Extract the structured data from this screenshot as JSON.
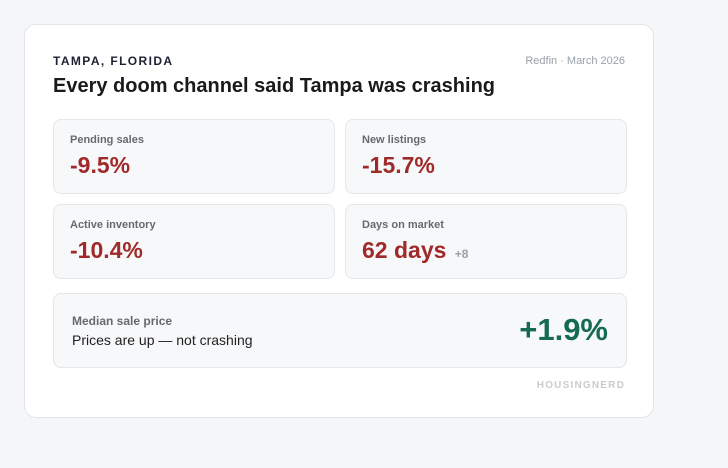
{
  "header": {
    "eyebrow": "TAMPA, FLORIDA",
    "source": "Redfin · March 2026",
    "title": "Every doom channel said Tampa was crashing"
  },
  "metrics": [
    {
      "label": "Pending sales",
      "value": "-9.5%",
      "delta": ""
    },
    {
      "label": "New listings",
      "value": "-15.7%",
      "delta": ""
    },
    {
      "label": "Active inventory",
      "value": "-10.4%",
      "delta": ""
    },
    {
      "label": "Days on market",
      "value": "62 days",
      "delta": "+8"
    }
  ],
  "highlight": {
    "label": "Median sale price",
    "subtitle": "Prices are up — not crashing",
    "value": "+1.9%"
  },
  "footer": {
    "brand": "HOUSINGNERD"
  },
  "colors": {
    "negative": "#a02a2a",
    "positive": "#146b4f",
    "muted": "#9aa0a8"
  }
}
